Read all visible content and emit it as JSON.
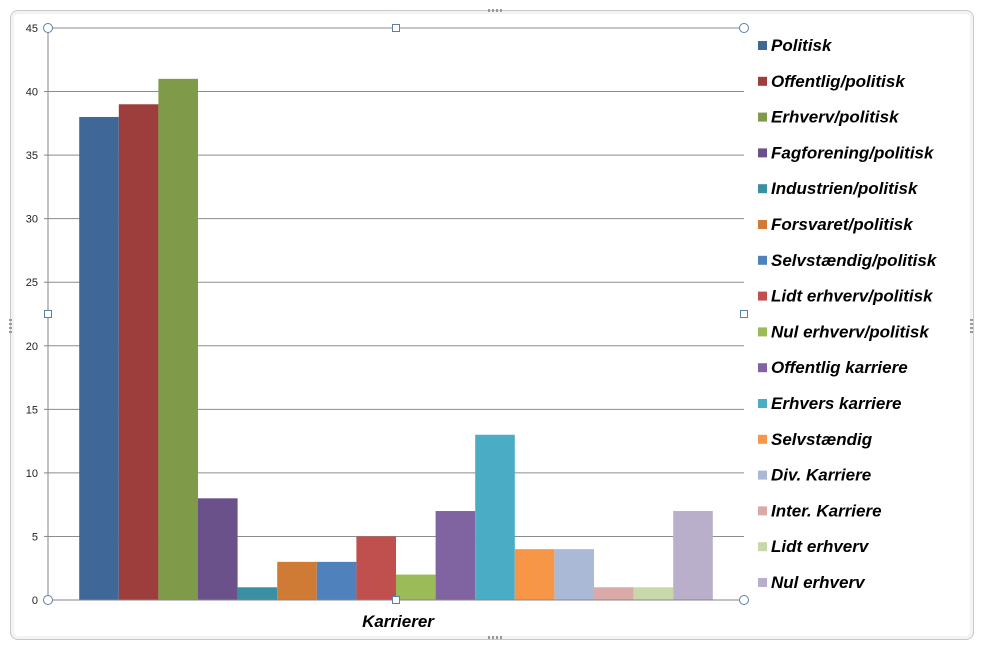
{
  "chart_data": {
    "type": "bar",
    "xlabel": "Karrierer",
    "ylabel": "",
    "ylim": [
      0,
      45
    ],
    "yticks": [
      0,
      5,
      10,
      15,
      20,
      25,
      30,
      35,
      40,
      45
    ],
    "grid": true,
    "legend_position": "right",
    "categories": [
      "Karrierer"
    ],
    "series": [
      {
        "name": "Politisk",
        "values": [
          38
        ],
        "color": "#3f6899"
      },
      {
        "name": "Offentlig/politisk",
        "values": [
          39
        ],
        "color": "#9e3e3c"
      },
      {
        "name": "Erhverv/politisk",
        "values": [
          41
        ],
        "color": "#7f9a48"
      },
      {
        "name": "Fagforening/politisk",
        "values": [
          8
        ],
        "color": "#6a5189"
      },
      {
        "name": "Industrien/politisk",
        "values": [
          1
        ],
        "color": "#3a8fa3"
      },
      {
        "name": "Forsvaret/politisk",
        "values": [
          3
        ],
        "color": "#cf7b36"
      },
      {
        "name": "Selvstændig/politisk",
        "values": [
          3
        ],
        "color": "#4f81bd"
      },
      {
        "name": "Lidt erhverv/politisk",
        "values": [
          5
        ],
        "color": "#c0504d"
      },
      {
        "name": "Nul erhverv/politisk",
        "values": [
          2
        ],
        "color": "#9bbb59"
      },
      {
        "name": "Offentlig karriere",
        "values": [
          7
        ],
        "color": "#8064a2"
      },
      {
        "name": "Erhvers karriere",
        "values": [
          13
        ],
        "color": "#4bacc6"
      },
      {
        "name": "Selvstændig",
        "values": [
          4
        ],
        "color": "#f79646"
      },
      {
        "name": "Div. Karriere",
        "values": [
          4
        ],
        "color": "#aab9d6"
      },
      {
        "name": "Inter. Karriere",
        "values": [
          1
        ],
        "color": "#d9aaa8"
      },
      {
        "name": "Lidt erhverv",
        "values": [
          1
        ],
        "color": "#c9d8aa"
      },
      {
        "name": "Nul erhverv",
        "values": [
          7
        ],
        "color": "#b9afcb"
      }
    ]
  }
}
